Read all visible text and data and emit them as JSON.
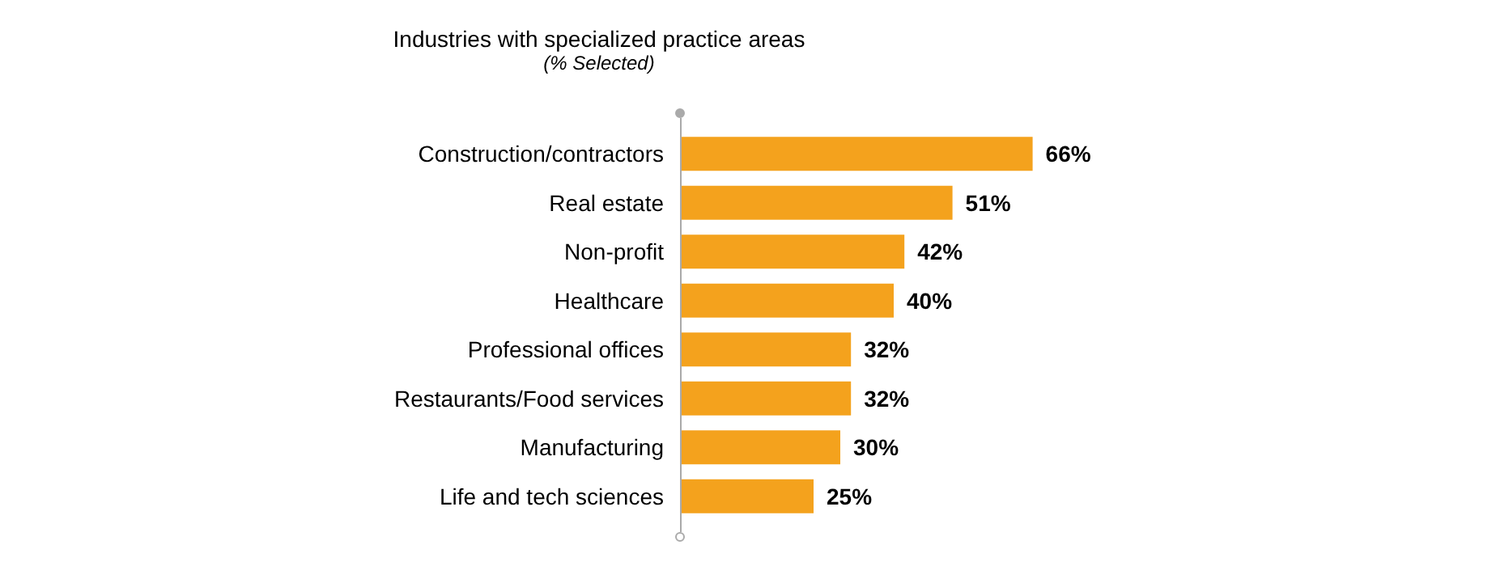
{
  "chart_data": {
    "type": "bar",
    "orientation": "horizontal",
    "title": "Industries with specialized practice areas",
    "subtitle": "(% Selected)",
    "categories": [
      "Construction/contractors",
      "Real estate",
      "Non-profit",
      "Healthcare",
      "Professional offices",
      "Restaurants/Food services",
      "Manufacturing",
      "Life and tech sciences"
    ],
    "values": [
      66,
      51,
      42,
      40,
      32,
      32,
      30,
      25
    ],
    "value_labels": [
      "66%",
      "51%",
      "42%",
      "40%",
      "32%",
      "32%",
      "30%",
      "25%"
    ],
    "color": "#f4a21d"
  }
}
